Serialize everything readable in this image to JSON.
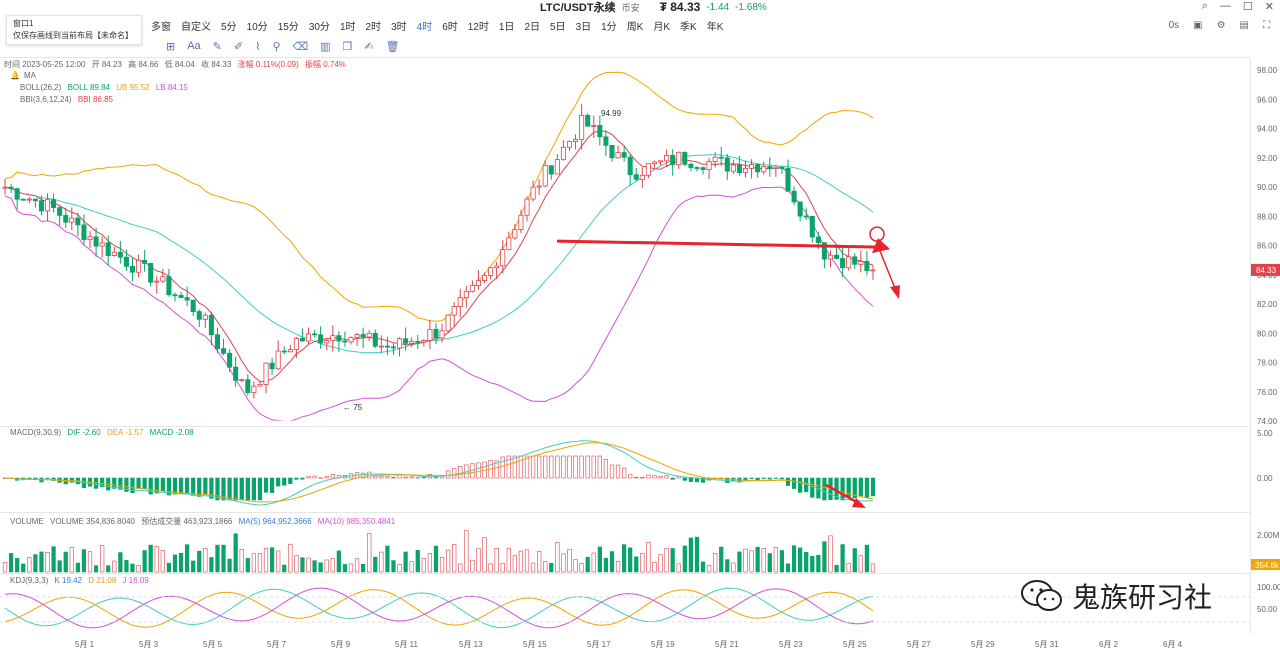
{
  "header": {
    "symbol": "LTC/USDT永续",
    "tag": "币安",
    "price": "₮ 84.33",
    "change": "-1.44",
    "change_pct": "-1.68%"
  },
  "toolbar": {
    "multi": "多窗",
    "custom": "自定义",
    "intervals": [
      "5分",
      "10分",
      "15分",
      "30分",
      "1时",
      "2时",
      "3时",
      "4时",
      "6时",
      "12时",
      "1日",
      "2日",
      "5日",
      "3日",
      "1分",
      "周K",
      "月K",
      "季K",
      "年K"
    ],
    "active_interval": "4时",
    "right_info": "0s"
  },
  "popup": {
    "line1": "窗口1",
    "line2": "仅保存画线到当前布局【未命名】"
  },
  "info_bar": {
    "time": "时间 2023-05-25 12:00",
    "open": "开 84.23",
    "high": "高 84.66",
    "low": "低 84.04",
    "close": "收 84.33",
    "change": "涨幅 0.11%(0.09)",
    "amplitude": "振幅 0.74%"
  },
  "indicators": {
    "ma": "MA",
    "boll": "BOLL(26,2)",
    "boll_mid": "BOLL 89.84",
    "boll_up": "UB 95.52",
    "boll_low": "LB 84.15",
    "bbi": "BBI(3,6,12,24)",
    "bbi_val": "BBI 86.85",
    "macd": "MACD(9,30,9)",
    "dif": "DIF -2.60",
    "dea": "DEA -1.57",
    "macd_val": "MACD -2.08",
    "volume": "VOLUME",
    "vol_val": "VOLUME 354,836.8040",
    "vol_est": "预估成交量 463,923.1866",
    "vol_ma5": "MA(5) 964,952.3666",
    "vol_ma10": "MA(10) 985,350.4841",
    "kdj": "KDJ(9,3,3)",
    "k": "K 19.42",
    "d": "D 21.08",
    "j": "J 16.09"
  },
  "chart_data": {
    "type": "candlestick",
    "price_axis": [
      "98.00",
      "96.00",
      "94.00",
      "92.00",
      "90.00",
      "88.00",
      "86.00",
      "84.00",
      "82.00",
      "80.00",
      "78.00",
      "76.00",
      "74.00"
    ],
    "price_range": [
      74,
      98
    ],
    "current_price_label": "84.33",
    "high_label": "94.99",
    "low_label": "75",
    "macd_axis": [
      "5.00",
      "0.00"
    ],
    "volume_axis": [
      "2.00M"
    ],
    "volume_current_label": "354.8k",
    "kdj_axis": [
      "100.00",
      "50.00"
    ],
    "x_labels": [
      "5月 1",
      "5月 3",
      "5月 5",
      "5月 7",
      "5月 9",
      "5月 11",
      "5月 13",
      "5月 15",
      "5月 17",
      "5月 19",
      "5月 21",
      "5月 23",
      "5月 25",
      "5月 27",
      "5月 29",
      "5月 31",
      "6月 2",
      "6月 4"
    ],
    "key_closes": [
      90,
      88.5,
      86,
      84,
      81.5,
      76,
      79.5,
      80,
      79,
      80.2,
      84,
      90,
      94.5,
      91,
      92,
      91.5,
      91.6,
      85.5,
      84.33
    ],
    "support_level": 86.3,
    "colors": {
      "up": "#e0424c",
      "down": "#0aa36b",
      "boll_outer": "#f0a500",
      "boll_lower": "#d64fd9",
      "ma_short": "#e0424c",
      "ma_long": "#3ecfc0",
      "annotation": "#e8232d"
    }
  },
  "watermark": {
    "text": "鬼族研习社"
  }
}
